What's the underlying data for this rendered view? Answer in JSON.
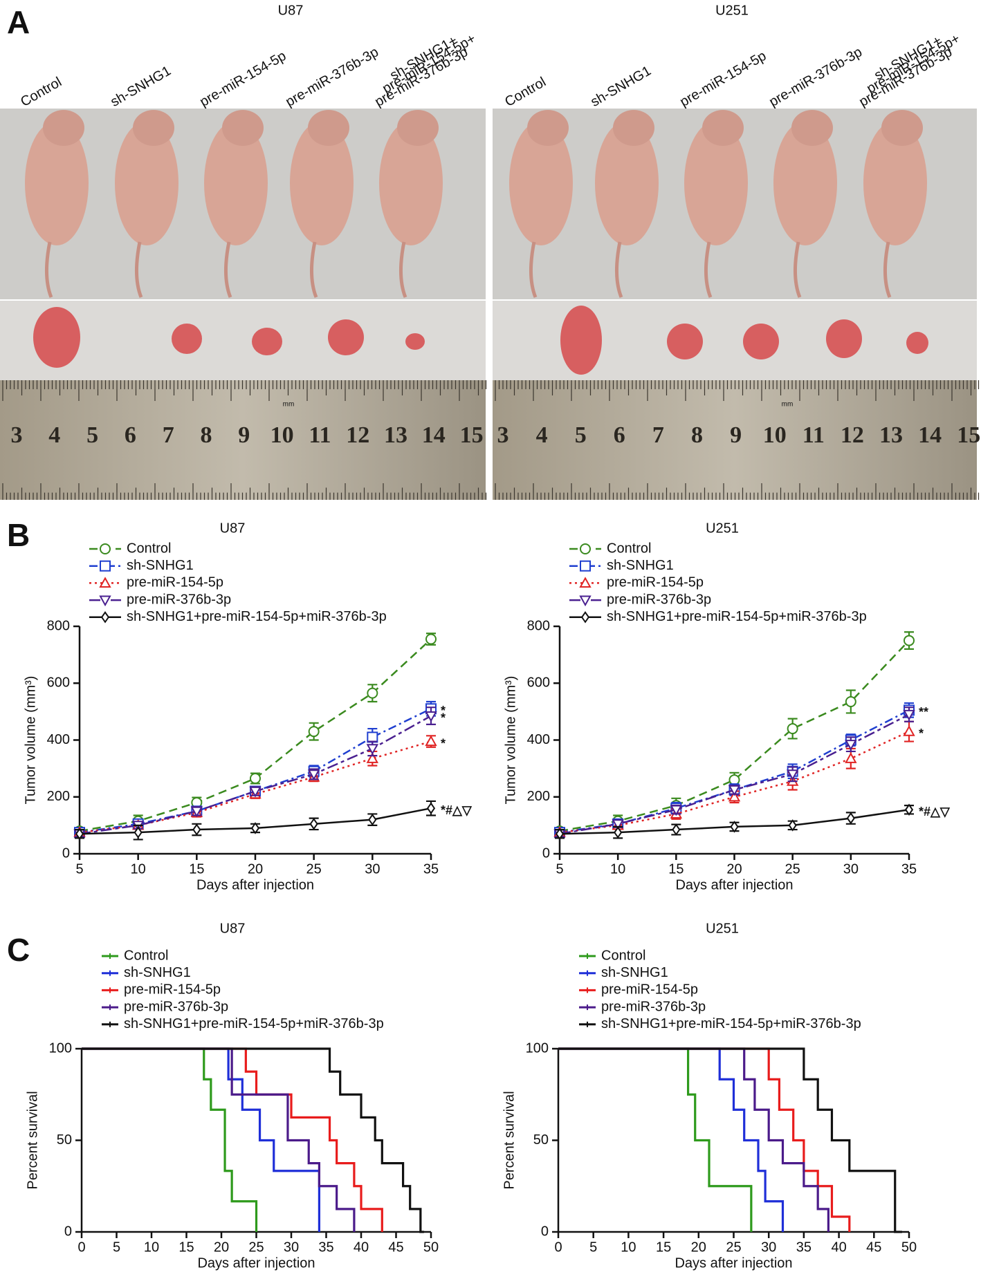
{
  "panel_labels": [
    "A",
    "B",
    "C"
  ],
  "photos": [
    {
      "title": "U87",
      "columns": [
        [
          "Control"
        ],
        [
          "sh-SNHG1"
        ],
        [
          "pre-miR-154-5p"
        ],
        [
          "pre-miR-376b-3p"
        ],
        [
          "sh-SNHG1+",
          "pre-miR-154-5p+",
          "pre-miR-376b-3p"
        ]
      ],
      "ruler_labels": [
        "3",
        "4",
        "5",
        "6",
        "7",
        "8",
        "9",
        "10",
        "11",
        "12",
        "13",
        "14",
        "15"
      ],
      "ruler_unit": "mm"
    },
    {
      "title": "U251",
      "columns": [
        [
          "Control"
        ],
        [
          "sh-SNHG1"
        ],
        [
          "pre-miR-154-5p"
        ],
        [
          "pre-miR-376b-3p"
        ],
        [
          "sh-SNHG1+",
          "pre-miR-154-5p+",
          "pre-miR-376b-3p"
        ]
      ],
      "ruler_labels": [
        "3",
        "4",
        "5",
        "6",
        "7",
        "8",
        "9",
        "10",
        "11",
        "12",
        "13",
        "14",
        "15"
      ],
      "ruler_unit": "mm"
    }
  ],
  "chart_data": [
    {
      "type": "line",
      "title": "U87",
      "xlabel": "Days after injection",
      "ylabel": "Tumor volume (mm³)",
      "x": [
        5,
        10,
        15,
        20,
        25,
        30,
        35
      ],
      "xlim": [
        5,
        35
      ],
      "xticks": [
        5,
        10,
        15,
        20,
        25,
        30,
        35
      ],
      "ylim": [
        0,
        800
      ],
      "yticks": [
        0,
        200,
        400,
        600,
        800
      ],
      "series": [
        {
          "name": "Control",
          "color": "#3a8a1e",
          "dash": "dashed",
          "marker": "circle",
          "values": [
            80,
            115,
            180,
            265,
            430,
            565,
            755
          ],
          "errors": [
            10,
            20,
            18,
            18,
            30,
            30,
            20
          ]
        },
        {
          "name": "sh-SNHG1",
          "color": "#1f3fd0",
          "dash": "dashdot",
          "marker": "square",
          "values": [
            75,
            105,
            150,
            220,
            290,
            410,
            510
          ],
          "errors": [
            10,
            15,
            15,
            15,
            20,
            30,
            25
          ],
          "annotation": "*"
        },
        {
          "name": "pre-miR-154-5p",
          "color": "#e02424",
          "dash": "dotted",
          "marker": "triangle",
          "values": [
            75,
            100,
            145,
            210,
            270,
            335,
            395
          ],
          "errors": [
            10,
            12,
            15,
            15,
            15,
            25,
            20
          ],
          "annotation": "*"
        },
        {
          "name": "pre-miR-376b-3p",
          "color": "#4a2090",
          "dash": "longdash",
          "marker": "triangle-down",
          "values": [
            70,
            100,
            150,
            220,
            280,
            370,
            485
          ],
          "errors": [
            10,
            12,
            15,
            15,
            18,
            25,
            30
          ],
          "annotation": "*"
        },
        {
          "name": "sh-SNHG1+pre-miR-154-5p+miR-376b-3p",
          "color": "#111111",
          "dash": "solid",
          "marker": "diamond",
          "values": [
            70,
            75,
            85,
            90,
            105,
            120,
            160
          ],
          "errors": [
            15,
            25,
            20,
            15,
            20,
            20,
            25
          ],
          "annotation": "*#△▽"
        }
      ]
    },
    {
      "type": "line",
      "title": "U251",
      "xlabel": "Days after injection",
      "ylabel": "Tumor volume (mm³)",
      "x": [
        5,
        10,
        15,
        20,
        25,
        30,
        35
      ],
      "xlim": [
        5,
        35
      ],
      "xticks": [
        5,
        10,
        15,
        20,
        25,
        30,
        35
      ],
      "ylim": [
        0,
        800
      ],
      "yticks": [
        0,
        200,
        400,
        600,
        800
      ],
      "series": [
        {
          "name": "Control",
          "color": "#3a8a1e",
          "dash": "dashed",
          "marker": "circle",
          "values": [
            80,
            115,
            170,
            260,
            440,
            535,
            750
          ],
          "errors": [
            10,
            20,
            25,
            25,
            35,
            40,
            30
          ]
        },
        {
          "name": "sh-SNHG1",
          "color": "#1f3fd0",
          "dash": "dashdot",
          "marker": "square",
          "values": [
            75,
            105,
            160,
            225,
            290,
            400,
            505
          ],
          "errors": [
            10,
            15,
            20,
            20,
            25,
            20,
            25
          ],
          "annotation": "**"
        },
        {
          "name": "pre-miR-154-5p",
          "color": "#e02424",
          "dash": "dotted",
          "marker": "triangle",
          "values": [
            75,
            100,
            140,
            200,
            255,
            335,
            430
          ],
          "errors": [
            10,
            12,
            18,
            20,
            30,
            35,
            35
          ],
          "annotation": "*"
        },
        {
          "name": "pre-miR-376b-3p",
          "color": "#4a2090",
          "dash": "longdash",
          "marker": "triangle-down",
          "values": [
            70,
            105,
            155,
            225,
            280,
            385,
            490
          ],
          "errors": [
            10,
            12,
            15,
            15,
            25,
            25,
            25
          ]
        },
        {
          "name": "sh-SNHG1+pre-miR-154-5p+miR-376b-3p",
          "color": "#111111",
          "dash": "solid",
          "marker": "diamond",
          "values": [
            70,
            75,
            85,
            95,
            100,
            125,
            155
          ],
          "errors": [
            15,
            20,
            18,
            15,
            15,
            20,
            15
          ],
          "annotation": "*#△▽"
        }
      ]
    },
    {
      "type": "step",
      "title": "U87",
      "xlabel": "Days after injection",
      "ylabel": "Percent survival",
      "xlim": [
        0,
        50
      ],
      "xticks": [
        0,
        5,
        10,
        15,
        20,
        25,
        30,
        35,
        40,
        45,
        50
      ],
      "ylim": [
        0,
        100
      ],
      "yticks": [
        0,
        50,
        100
      ],
      "series": [
        {
          "name": "Control",
          "color": "#2e9a1c",
          "x": [
            0,
            17.5,
            18.5,
            20.5,
            21.5,
            25
          ],
          "values": [
            100,
            83.3,
            66.7,
            33.3,
            16.7,
            0
          ]
        },
        {
          "name": "sh-SNHG1",
          "color": "#1f2fd8",
          "x": [
            0,
            21,
            23,
            25.5,
            27.5,
            34
          ],
          "values": [
            100,
            83.3,
            66.7,
            50,
            33.3,
            0
          ]
        },
        {
          "name": "pre-miR-154-5p",
          "color": "#e81c1c",
          "x": [
            0,
            23.5,
            25,
            30,
            35.5,
            36.5,
            39,
            40,
            43
          ],
          "values": [
            100,
            87.5,
            75,
            62.5,
            50,
            37.5,
            25,
            12.5,
            0
          ]
        },
        {
          "name": "pre-miR-376b-3p",
          "color": "#4b1b8a",
          "x": [
            0,
            21.5,
            29.5,
            32.5,
            34,
            36.5,
            39
          ],
          "values": [
            100,
            75,
            50,
            37.5,
            25,
            12.5,
            0
          ]
        },
        {
          "name": "sh-SNHG1+pre-miR-154-5p+miR-376b-3p",
          "color": "#111111",
          "x": [
            0,
            35.5,
            37,
            40,
            42,
            43,
            46,
            47,
            48.5,
            49
          ],
          "values": [
            100,
            87.5,
            75,
            62.5,
            50,
            37.5,
            25,
            12.5,
            0,
            0
          ]
        }
      ]
    },
    {
      "type": "step",
      "title": "U251",
      "xlabel": "Days after injection",
      "ylabel": "Percent survival",
      "xlim": [
        0,
        50
      ],
      "xticks": [
        0,
        5,
        10,
        15,
        20,
        25,
        30,
        35,
        40,
        45,
        50
      ],
      "ylim": [
        0,
        100
      ],
      "yticks": [
        0,
        50,
        100
      ],
      "series": [
        {
          "name": "Control",
          "color": "#2e9a1c",
          "x": [
            0,
            18.5,
            19.5,
            21.5,
            27.5
          ],
          "values": [
            100,
            75,
            50,
            25,
            0
          ]
        },
        {
          "name": "sh-SNHG1",
          "color": "#1f2fd8",
          "x": [
            0,
            23,
            25,
            26.5,
            28.5,
            29.5,
            32
          ],
          "values": [
            100,
            83.3,
            66.7,
            50,
            33.3,
            16.7,
            0
          ]
        },
        {
          "name": "pre-miR-154-5p",
          "color": "#e81c1c",
          "x": [
            0,
            30,
            31.5,
            33.5,
            35,
            37,
            39,
            41.5
          ],
          "values": [
            100,
            83.3,
            66.7,
            50,
            33.3,
            25,
            8.3,
            0
          ]
        },
        {
          "name": "pre-miR-376b-3p",
          "color": "#4b1b8a",
          "x": [
            0,
            26.5,
            28,
            30,
            32,
            35,
            37,
            38.5
          ],
          "values": [
            100,
            83.3,
            66.7,
            50,
            37.5,
            25,
            12.5,
            0
          ]
        },
        {
          "name": "sh-SNHG1+pre-miR-154-5p+miR-376b-3p",
          "color": "#111111",
          "x": [
            0,
            35,
            37,
            39,
            41.5,
            44,
            48,
            49
          ],
          "values": [
            100,
            83.3,
            66.7,
            50,
            33.3,
            33.3,
            0,
            0
          ]
        }
      ]
    }
  ]
}
